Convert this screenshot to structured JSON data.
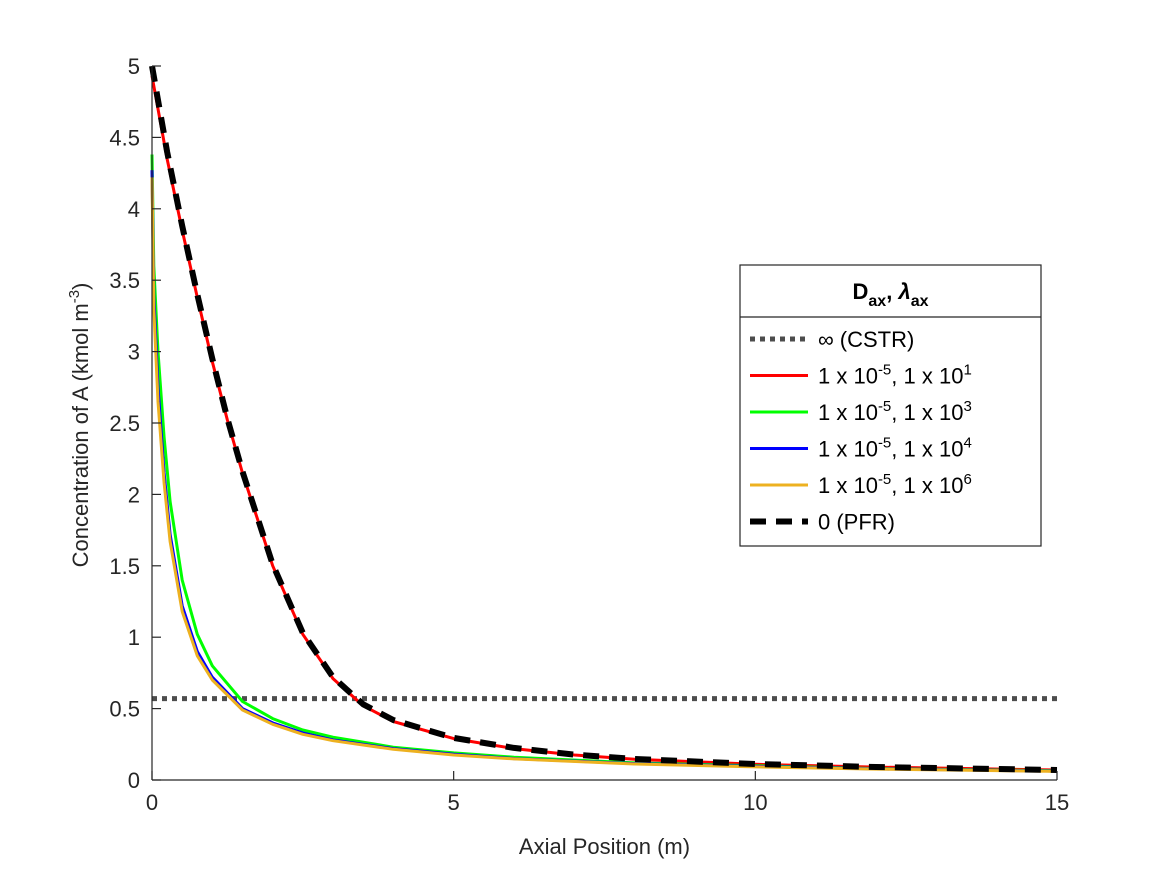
{
  "chart_data": {
    "type": "line",
    "title": "",
    "xlabel": "Axial Position (m)",
    "ylabel": {
      "text": "Concentration of A (kmol m",
      "sup": "-3",
      "close": ")"
    },
    "xlim": [
      0,
      15
    ],
    "ylim": [
      0,
      5
    ],
    "xticks": [
      "0",
      "5",
      "10",
      "15"
    ],
    "yticks": [
      "0",
      "0.5",
      "1",
      "1.5",
      "2",
      "2.5",
      "3",
      "3.5",
      "4",
      "4.5",
      "5"
    ],
    "grid": false,
    "legend": {
      "placement": "right",
      "title": {
        "d": "D",
        "d_sub": "ax",
        "sep": ",  ",
        "l": "λ",
        "l_sub": "ax"
      },
      "entries": [
        {
          "parts": [
            "∞ (CSTR)"
          ]
        },
        {
          "parts": [
            "1 x 10",
            "-5",
            ", 1 x 10",
            "1"
          ]
        },
        {
          "parts": [
            "1 x 10",
            "-5",
            ", 1 x 10",
            "3"
          ]
        },
        {
          "parts": [
            "1 x 10",
            "-5",
            ", 1 x 10",
            "4"
          ]
        },
        {
          "parts": [
            "1 x 10",
            "-5",
            ", 1 x 10",
            "6"
          ]
        },
        {
          "parts": [
            "0 (PFR)"
          ]
        }
      ]
    },
    "series": [
      {
        "color": "#4d4d4d",
        "style": "dotted",
        "x": [
          0,
          15
        ],
        "y": [
          0.57,
          0.57
        ]
      },
      {
        "color": "#ff0000",
        "style": "solid",
        "x": [
          0,
          0.25,
          0.5,
          0.75,
          1,
          1.25,
          1.5,
          2,
          2.5,
          3,
          3.5,
          4,
          5,
          6,
          7,
          8,
          10,
          12,
          15
        ],
        "y": [
          4.93,
          4.35,
          3.85,
          3.38,
          2.93,
          2.52,
          2.15,
          1.5,
          1.02,
          0.71,
          0.52,
          0.41,
          0.29,
          0.22,
          0.175,
          0.145,
          0.11,
          0.09,
          0.07
        ]
      },
      {
        "color": "#00ff00",
        "style": "solid",
        "x": [
          0,
          0.03,
          0.1,
          0.2,
          0.3,
          0.5,
          0.75,
          1,
          1.5,
          2,
          2.5,
          3,
          4,
          5,
          6,
          8,
          10,
          12,
          15
        ],
        "y": [
          4.38,
          3.6,
          3.0,
          2.4,
          1.95,
          1.4,
          1.02,
          0.8,
          0.55,
          0.43,
          0.35,
          0.3,
          0.23,
          0.19,
          0.16,
          0.12,
          0.1,
          0.08,
          0.065
        ]
      },
      {
        "color": "#0000ff",
        "style": "solid",
        "x": [
          0,
          0.03,
          0.1,
          0.2,
          0.3,
          0.5,
          0.75,
          1,
          1.5,
          2,
          2.5,
          3,
          4,
          5,
          6,
          8,
          10,
          12,
          15
        ],
        "y": [
          4.27,
          3.4,
          2.75,
          2.15,
          1.72,
          1.22,
          0.9,
          0.72,
          0.5,
          0.4,
          0.33,
          0.28,
          0.22,
          0.18,
          0.15,
          0.115,
          0.095,
          0.078,
          0.062
        ]
      },
      {
        "color": "#edb120",
        "style": "solid",
        "x": [
          0,
          0.03,
          0.1,
          0.2,
          0.3,
          0.5,
          0.75,
          1,
          1.5,
          2,
          2.5,
          3,
          4,
          5,
          6,
          8,
          10,
          12,
          15
        ],
        "y": [
          4.22,
          3.3,
          2.65,
          2.08,
          1.67,
          1.18,
          0.87,
          0.7,
          0.49,
          0.39,
          0.32,
          0.275,
          0.215,
          0.175,
          0.148,
          0.112,
          0.092,
          0.076,
          0.06
        ]
      },
      {
        "color": "#000000",
        "style": "dashed",
        "x": [
          0,
          0.25,
          0.5,
          0.75,
          1,
          1.25,
          1.5,
          2,
          2.5,
          3,
          3.5,
          4,
          5,
          6,
          7,
          8,
          10,
          12,
          15
        ],
        "y": [
          5.0,
          4.4,
          3.88,
          3.4,
          2.95,
          2.53,
          2.16,
          1.51,
          1.03,
          0.72,
          0.53,
          0.42,
          0.295,
          0.225,
          0.178,
          0.147,
          0.112,
          0.091,
          0.07
        ]
      }
    ]
  }
}
